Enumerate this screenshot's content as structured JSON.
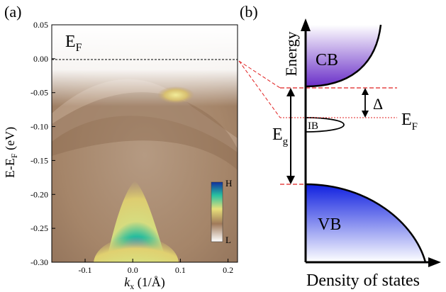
{
  "panel_a": {
    "label": "(a)",
    "inset_label": "E",
    "inset_sub": "F",
    "ylabel_main": "E-E",
    "ylabel_sub": "F",
    "ylabel_unit": " (eV)",
    "xlabel_k": "k",
    "xlabel_sub": "x",
    "xlabel_unit": " (1/Å)",
    "colorbar": {
      "high": "H",
      "low": "L"
    },
    "yticks": [
      "0.05",
      "0.00",
      "-0.05",
      "-0.10",
      "-0.15",
      "-0.20",
      "-0.25",
      "-0.30"
    ],
    "xticks": [
      "-0.1",
      "0.0",
      "0.1",
      "0.2"
    ],
    "x_range": [
      -0.17,
      0.22
    ],
    "y_range": [
      -0.3,
      0.05
    ]
  },
  "panel_b": {
    "label": "(b)",
    "energy_label": "Energy",
    "dos_label": "Density of states",
    "cb_label": "CB",
    "vb_label": "VB",
    "ib_label": "IB",
    "gap_label": "E",
    "gap_sub": "g",
    "delta_label": "Δ",
    "ef_label": "E",
    "ef_sub": "F"
  },
  "colors": {
    "cb": "#7a3fd0",
    "vb": "#1a2ee0",
    "dashed": "#e02020",
    "spectrum_bg": "#a88a70"
  }
}
